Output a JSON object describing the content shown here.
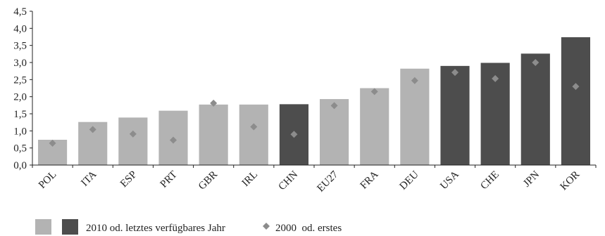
{
  "chart_data": {
    "type": "bar",
    "categories": [
      "POL",
      "ITA",
      "ESP",
      "PRT",
      "GBR",
      "IRL",
      "CHN",
      "EU27",
      "FRA",
      "DEU",
      "USA",
      "CHE",
      "JPN",
      "KOR"
    ],
    "series": [
      {
        "name": "2010 od. letztes verfügbares Jahr",
        "values": [
          0.74,
          1.26,
          1.39,
          1.59,
          1.77,
          1.77,
          1.78,
          1.93,
          2.25,
          2.82,
          2.9,
          2.99,
          3.26,
          3.74
        ],
        "highlight": [
          false,
          false,
          false,
          false,
          false,
          false,
          true,
          false,
          false,
          false,
          true,
          true,
          true,
          true
        ]
      },
      {
        "name": "2000  od. erstes",
        "marker": "diamond",
        "values": [
          0.64,
          1.04,
          0.91,
          0.73,
          1.81,
          1.12,
          0.9,
          1.74,
          2.15,
          2.47,
          2.71,
          2.53,
          3.0,
          2.3
        ]
      }
    ],
    "y_ticks": [
      "0,0",
      "0,5",
      "1,0",
      "1,5",
      "2,0",
      "2,5",
      "3,0",
      "3,5",
      "4,0",
      "4,5"
    ],
    "ylim": [
      0,
      4.5
    ],
    "y_step": 0.5,
    "title": "",
    "xlabel": "",
    "ylabel": "",
    "legend_position": "bottom-left",
    "grid": false
  },
  "colors": {
    "bar_light": "#b3b3b3",
    "bar_dark": "#4d4d4d",
    "marker": "#8c8c8c",
    "axis": "#222222"
  }
}
